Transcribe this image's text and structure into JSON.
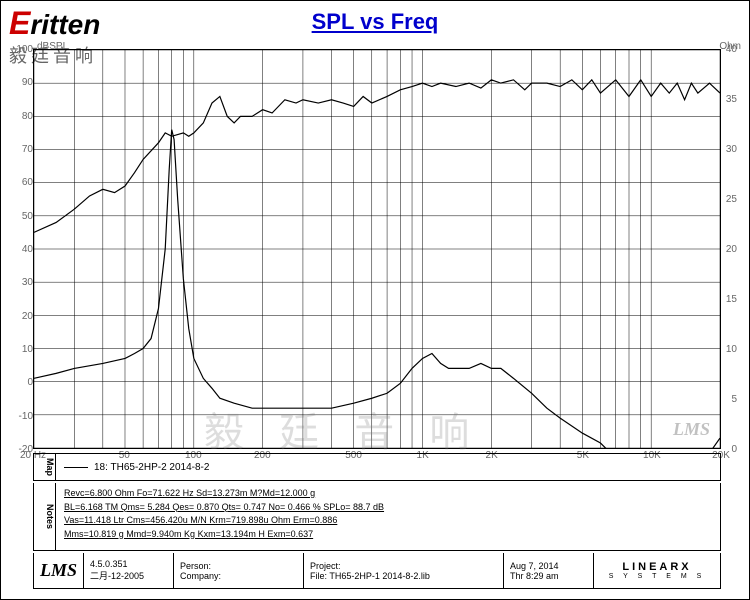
{
  "logo": {
    "brand": "ritten",
    "sub": "毅廷音响"
  },
  "title": "SPL vs Freq",
  "chart": {
    "type": "line",
    "x_axis": {
      "scale": "log",
      "min": 20,
      "max": 20000,
      "unit": "Hz",
      "ticks": [
        20,
        50,
        100,
        200,
        500,
        1000,
        2000,
        5000,
        10000,
        20000
      ],
      "tick_labels": [
        "20  Hz",
        "50",
        "100",
        "200",
        "500",
        "1K",
        "2K",
        "5K",
        "10K",
        "20K"
      ]
    },
    "y_axis_left": {
      "label": "dBSPL",
      "min": -20,
      "max": 100,
      "ticks": [
        -20,
        -10,
        0,
        10,
        20,
        30,
        40,
        50,
        60,
        70,
        80,
        90,
        100
      ]
    },
    "y_axis_right": {
      "label": "Ohm",
      "min": 0,
      "max": 40,
      "ticks": [
        0,
        5,
        10,
        15,
        20,
        25,
        30,
        35,
        40
      ]
    },
    "grid_color": "#000000",
    "background_color": "#ffffff",
    "line_color": "#000000",
    "line_width": 1.2,
    "spl_curve": [
      [
        20,
        45
      ],
      [
        25,
        48
      ],
      [
        30,
        52
      ],
      [
        35,
        56
      ],
      [
        40,
        58
      ],
      [
        45,
        57
      ],
      [
        50,
        59
      ],
      [
        55,
        63
      ],
      [
        60,
        67
      ],
      [
        70,
        72
      ],
      [
        75,
        75
      ],
      [
        80,
        74
      ],
      [
        90,
        75
      ],
      [
        95,
        74
      ],
      [
        100,
        75
      ],
      [
        110,
        78
      ],
      [
        120,
        84
      ],
      [
        130,
        86
      ],
      [
        140,
        80
      ],
      [
        150,
        78
      ],
      [
        160,
        80
      ],
      [
        180,
        80
      ],
      [
        200,
        82
      ],
      [
        220,
        81
      ],
      [
        250,
        85
      ],
      [
        280,
        84
      ],
      [
        300,
        85
      ],
      [
        350,
        84
      ],
      [
        400,
        85
      ],
      [
        450,
        84
      ],
      [
        500,
        83
      ],
      [
        550,
        86
      ],
      [
        600,
        84
      ],
      [
        700,
        86
      ],
      [
        800,
        88
      ],
      [
        900,
        89
      ],
      [
        1000,
        90
      ],
      [
        1100,
        89
      ],
      [
        1200,
        90
      ],
      [
        1400,
        89
      ],
      [
        1600,
        90
      ],
      [
        1800,
        88.5
      ],
      [
        2000,
        91
      ],
      [
        2200,
        90
      ],
      [
        2500,
        91
      ],
      [
        2800,
        88
      ],
      [
        3000,
        90
      ],
      [
        3500,
        90
      ],
      [
        4000,
        89
      ],
      [
        4500,
        91
      ],
      [
        5000,
        88
      ],
      [
        5500,
        91
      ],
      [
        6000,
        87
      ],
      [
        7000,
        91
      ],
      [
        8000,
        86
      ],
      [
        9000,
        91
      ],
      [
        10000,
        86
      ],
      [
        11000,
        90
      ],
      [
        12000,
        87
      ],
      [
        13000,
        90
      ],
      [
        14000,
        85
      ],
      [
        15000,
        90
      ],
      [
        16000,
        87
      ],
      [
        18000,
        90
      ],
      [
        20000,
        87
      ]
    ],
    "impedance_curve": [
      [
        20,
        7
      ],
      [
        25,
        7.5
      ],
      [
        30,
        8
      ],
      [
        40,
        8.5
      ],
      [
        50,
        9
      ],
      [
        55,
        9.5
      ],
      [
        60,
        10
      ],
      [
        65,
        11
      ],
      [
        70,
        14
      ],
      [
        75,
        20
      ],
      [
        78,
        28
      ],
      [
        80,
        32
      ],
      [
        82,
        31
      ],
      [
        85,
        25
      ],
      [
        90,
        17
      ],
      [
        95,
        12
      ],
      [
        100,
        9
      ],
      [
        110,
        7
      ],
      [
        120,
        6
      ],
      [
        130,
        5
      ],
      [
        150,
        4.5
      ],
      [
        180,
        4
      ],
      [
        200,
        4
      ],
      [
        250,
        4
      ],
      [
        300,
        4
      ],
      [
        400,
        4
      ],
      [
        500,
        4.5
      ],
      [
        600,
        5
      ],
      [
        700,
        5.5
      ],
      [
        800,
        6.5
      ],
      [
        900,
        8
      ],
      [
        1000,
        9
      ],
      [
        1100,
        9.5
      ],
      [
        1200,
        8.5
      ],
      [
        1300,
        8
      ],
      [
        1400,
        8
      ],
      [
        1600,
        8
      ],
      [
        1800,
        8.5
      ],
      [
        2000,
        8
      ],
      [
        2200,
        8
      ],
      [
        2500,
        7
      ],
      [
        3000,
        5.5
      ],
      [
        3500,
        4
      ],
      [
        4000,
        3
      ],
      [
        5000,
        1.5
      ],
      [
        6000,
        0.5
      ],
      [
        7000,
        -1
      ],
      [
        8000,
        -2
      ],
      [
        9000,
        -2.5
      ],
      [
        10000,
        -3
      ],
      [
        11000,
        -3.5
      ],
      [
        12000,
        -3
      ],
      [
        14000,
        -2.5
      ],
      [
        16000,
        -1.5
      ],
      [
        18000,
        -0.5
      ],
      [
        20000,
        1
      ]
    ]
  },
  "legend": {
    "section": "Map",
    "text": "18: TH65-2HP-2   2014-8-2"
  },
  "notes": {
    "section": "Notes",
    "lines": [
      "Revc=6.800 Ohm  Fo=71.622 Hz  Sd=13.273m M?Md=12.000 g",
      "BL=6.168 TM  Qms= 5.284  Qes= 0.870  Qts= 0.747  No= 0.466 %  SPLo= 88.7 dB",
      "Vas=11.418 Ltr  Cms=456.420u M/N  Krm=719.898u Ohm  Erm=0.886",
      "Mms=10.819 g  Mmd=9.940m Kg  Kxm=13.194m H  Exm=0.637"
    ]
  },
  "footer": {
    "lms": "LMS",
    "version": "4.5.0.351",
    "date_build": "二月-12-2005",
    "person_label": "Person:",
    "company_label": "Company:",
    "project_label": "Project:",
    "file_label": "File: TH65-2HP-1  2014-8-2.lib",
    "date": "Aug  7, 2014",
    "time": "Thr   8:29 am",
    "linearx": "LINEARX",
    "linearx_sub": "S Y S T E M S"
  },
  "watermark": "毅 廷 音 响",
  "lms_mark": "LMS"
}
